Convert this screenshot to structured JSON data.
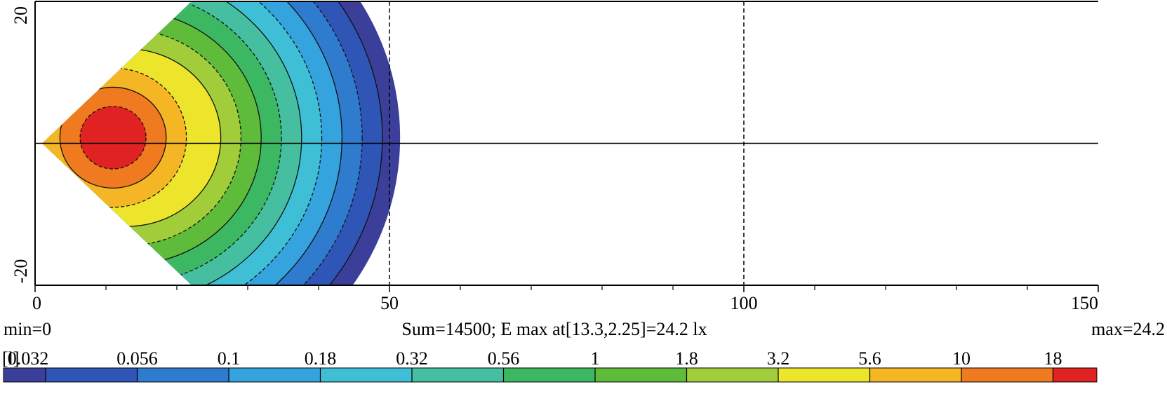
{
  "chart_data": {
    "type": "heatmap",
    "xlim": [
      0,
      150
    ],
    "ylim": [
      -20,
      20
    ],
    "xticks": [
      0,
      50,
      100,
      150
    ],
    "yticks": [
      -20,
      20
    ],
    "x_minor_ticks": [
      10,
      20,
      30,
      40,
      60,
      70,
      80,
      90,
      110,
      120,
      130,
      140
    ],
    "dashed_gridlines_x": [
      50,
      100
    ],
    "annotations": {
      "min": "min=0",
      "summary": "Sum=14500; E max at[13.3,2.25]=24.2 lx",
      "max": "max=24.2"
    },
    "colorbar": {
      "unit": "[l]",
      "levels": [
        0.032,
        0.056,
        0.1,
        0.18,
        0.32,
        0.56,
        1,
        1.8,
        3.2,
        5.6,
        10,
        18
      ],
      "colors": [
        "#3b3f99",
        "#2f55b6",
        "#2f7ccf",
        "#34a3de",
        "#3fbfd6",
        "#45bfa0",
        "#3cb862",
        "#5fbb3a",
        "#a2cd3a",
        "#ece52c",
        "#f5b626",
        "#f07a20",
        "#e02222"
      ]
    }
  }
}
